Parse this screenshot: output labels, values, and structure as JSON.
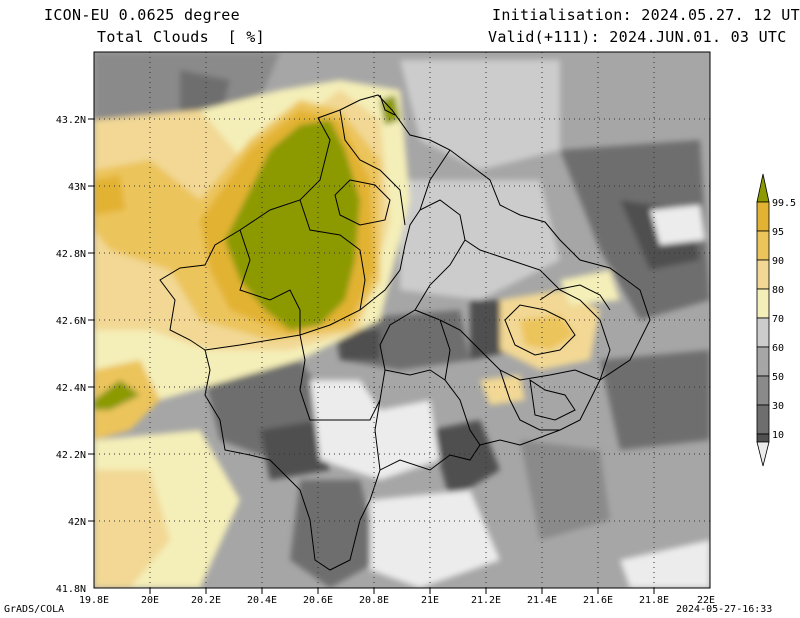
{
  "header": {
    "model": "ICON-EU 0.0625 degree",
    "field": "Total Clouds  [ %]",
    "init": "Initialisation: 2024.05.27. 12 UTC",
    "valid": "Valid(+111): 2024.JUN.01. 03 UTC"
  },
  "footer": {
    "software": "GrADS/COLA",
    "timestamp": "2024-05-27-16:33"
  },
  "map": {
    "lat_ticks": [
      "43.2N",
      "43N",
      "42.8N",
      "42.6N",
      "42.4N",
      "42.2N",
      "42N",
      "41.8N"
    ],
    "lon_ticks": [
      "19.8E",
      "20E",
      "20.2E",
      "20.4E",
      "20.6E",
      "20.8E",
      "21E",
      "21.2E",
      "21.4E",
      "21.6E",
      "21.8E",
      "22E"
    ],
    "lat_values": [
      43.2,
      43.0,
      42.8,
      42.6,
      42.4,
      42.2,
      42.0,
      41.8
    ],
    "lon_values": [
      19.8,
      20.0,
      20.2,
      20.4,
      20.6,
      20.8,
      21.0,
      21.2,
      21.4,
      21.6,
      21.8,
      22.0
    ],
    "lat_range": [
      41.8,
      43.4
    ],
    "lon_range": [
      19.8,
      22.0
    ],
    "grid": "dotted"
  },
  "colorbar": {
    "labels": [
      "99.5",
      "95",
      "90",
      "80",
      "70",
      "60",
      "50",
      "30",
      "10"
    ],
    "colors": [
      "#8c9a00",
      "#e2b233",
      "#ecc45c",
      "#f2d894",
      "#f4eeb8",
      "#cccccc",
      "#a6a6a6",
      "#8a8a8a",
      "#6e6e6e",
      "#505050",
      "#ececec"
    ],
    "unit": "%"
  }
}
